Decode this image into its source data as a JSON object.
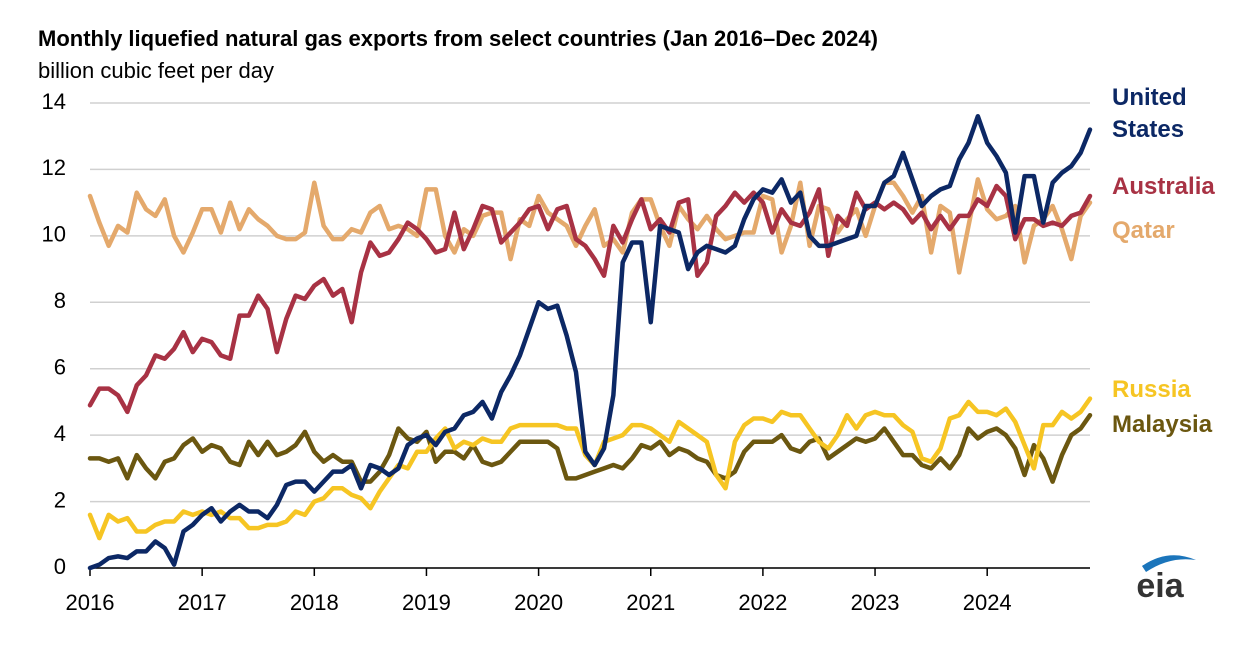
{
  "chart_data": {
    "type": "line",
    "title": "Monthly liquefied natural gas exports from select countries (Jan 2016–Dec 2024)",
    "subtitle": "billion cubic feet per day",
    "logo": "eia",
    "x": [
      "2016-01",
      "2016-02",
      "2016-03",
      "2016-04",
      "2016-05",
      "2016-06",
      "2016-07",
      "2016-08",
      "2016-09",
      "2016-10",
      "2016-11",
      "2016-12",
      "2017-01",
      "2017-02",
      "2017-03",
      "2017-04",
      "2017-05",
      "2017-06",
      "2017-07",
      "2017-08",
      "2017-09",
      "2017-10",
      "2017-11",
      "2017-12",
      "2018-01",
      "2018-02",
      "2018-03",
      "2018-04",
      "2018-05",
      "2018-06",
      "2018-07",
      "2018-08",
      "2018-09",
      "2018-10",
      "2018-11",
      "2018-12",
      "2019-01",
      "2019-02",
      "2019-03",
      "2019-04",
      "2019-05",
      "2019-06",
      "2019-07",
      "2019-08",
      "2019-09",
      "2019-10",
      "2019-11",
      "2019-12",
      "2020-01",
      "2020-02",
      "2020-03",
      "2020-04",
      "2020-05",
      "2020-06",
      "2020-07",
      "2020-08",
      "2020-09",
      "2020-10",
      "2020-11",
      "2020-12",
      "2021-01",
      "2021-02",
      "2021-03",
      "2021-04",
      "2021-05",
      "2021-06",
      "2021-07",
      "2021-08",
      "2021-09",
      "2021-10",
      "2021-11",
      "2021-12",
      "2022-01",
      "2022-02",
      "2022-03",
      "2022-04",
      "2022-05",
      "2022-06",
      "2022-07",
      "2022-08",
      "2022-09",
      "2022-10",
      "2022-11",
      "2022-12",
      "2023-01",
      "2023-02",
      "2023-03",
      "2023-04",
      "2023-05",
      "2023-06",
      "2023-07",
      "2023-08",
      "2023-09",
      "2023-10",
      "2023-11",
      "2023-12",
      "2024-01",
      "2024-02",
      "2024-03",
      "2024-04",
      "2024-05",
      "2024-06",
      "2024-07",
      "2024-08",
      "2024-09",
      "2024-10",
      "2024-11",
      "2024-12"
    ],
    "series": [
      {
        "name": "United States",
        "color": "#0c2865",
        "values": [
          0,
          0.1,
          0.3,
          0.35,
          0.3,
          0.5,
          0.5,
          0.8,
          0.6,
          0.1,
          1.1,
          1.3,
          1.6,
          1.8,
          1.4,
          1.7,
          1.9,
          1.7,
          1.7,
          1.5,
          1.9,
          2.5,
          2.6,
          2.6,
          2.3,
          2.6,
          2.9,
          2.9,
          3.1,
          2.4,
          3.1,
          3.0,
          2.8,
          3.0,
          3.7,
          3.9,
          4.0,
          3.7,
          4.1,
          4.2,
          4.6,
          4.7,
          5.0,
          4.5,
          5.3,
          5.8,
          6.4,
          7.2,
          8.0,
          7.8,
          7.9,
          7.0,
          5.9,
          3.5,
          3.1,
          3.6,
          5.2,
          9.2,
          9.8,
          9.8,
          7.4,
          10.3,
          10.2,
          10.1,
          9.0,
          9.5,
          9.7,
          9.6,
          9.5,
          9.7,
          10.5,
          11.1,
          11.4,
          11.3,
          11.7,
          11.0,
          11.3,
          10.0,
          9.7,
          9.7,
          9.8,
          9.9,
          10.0,
          10.9,
          10.9,
          11.6,
          11.8,
          12.5,
          11.7,
          10.9,
          11.2,
          11.4,
          11.5,
          12.3,
          12.8,
          13.6,
          12.8,
          12.4,
          11.9,
          10.1,
          11.8,
          11.8,
          10.4,
          11.6,
          11.9,
          12.1,
          12.5,
          13.2
        ]
      },
      {
        "name": "Australia",
        "color": "#a83244",
        "values": [
          4.9,
          5.4,
          5.4,
          5.2,
          4.7,
          5.5,
          5.8,
          6.4,
          6.3,
          6.6,
          7.1,
          6.5,
          6.9,
          6.8,
          6.4,
          6.3,
          7.6,
          7.6,
          8.2,
          7.8,
          6.5,
          7.5,
          8.2,
          8.1,
          8.5,
          8.7,
          8.2,
          8.4,
          7.4,
          8.9,
          9.8,
          9.4,
          9.5,
          9.9,
          10.4,
          10.2,
          9.9,
          9.5,
          9.6,
          10.7,
          9.6,
          10.2,
          10.9,
          10.8,
          9.8,
          10.1,
          10.4,
          10.8,
          10.9,
          10.2,
          10.8,
          10.9,
          9.9,
          9.7,
          9.3,
          8.8,
          10.3,
          9.8,
          10.5,
          11.1,
          10.2,
          10.5,
          10.1,
          11.0,
          11.1,
          8.8,
          9.2,
          10.6,
          10.9,
          11.3,
          11.0,
          11.3,
          11.0,
          10.1,
          10.8,
          10.4,
          10.3,
          10.7,
          11.4,
          9.4,
          10.6,
          10.3,
          11.3,
          10.8,
          11.0,
          10.8,
          11.0,
          10.8,
          10.4,
          10.7,
          10.2,
          10.6,
          10.2,
          10.6,
          10.6,
          11.1,
          10.9,
          11.5,
          11.2,
          9.9,
          10.5,
          10.5,
          10.3,
          10.4,
          10.3,
          10.6,
          10.7,
          11.2
        ]
      },
      {
        "name": "Qatar",
        "color": "#e4a96c",
        "values": [
          11.2,
          10.4,
          9.7,
          10.3,
          10.1,
          11.3,
          10.8,
          10.6,
          11.1,
          10.0,
          9.5,
          10.1,
          10.8,
          10.8,
          10.1,
          11.0,
          10.2,
          10.8,
          10.5,
          10.3,
          10.0,
          9.9,
          9.9,
          10.1,
          11.6,
          10.3,
          9.9,
          9.9,
          10.2,
          10.1,
          10.7,
          10.9,
          10.2,
          10.3,
          10.2,
          10.0,
          11.4,
          11.4,
          10.0,
          9.5,
          10.2,
          10.0,
          10.6,
          10.7,
          10.7,
          9.3,
          10.5,
          10.3,
          11.2,
          10.7,
          10.5,
          10.3,
          9.7,
          10.3,
          10.8,
          9.7,
          9.9,
          9.5,
          10.7,
          11.1,
          11.1,
          10.3,
          9.7,
          10.9,
          10.5,
          10.2,
          10.6,
          10.2,
          9.9,
          10.0,
          10.1,
          10.1,
          11.2,
          11.1,
          9.5,
          10.3,
          11.6,
          9.7,
          10.9,
          10.8,
          10.1,
          10.5,
          10.8,
          10.0,
          10.9,
          11.6,
          11.6,
          11.2,
          10.7,
          11.2,
          9.5,
          10.9,
          10.7,
          8.9,
          10.3,
          11.7,
          10.8,
          10.5,
          10.6,
          10.9,
          9.2,
          10.3,
          10.5,
          10.9,
          10.2,
          9.3,
          10.6,
          11.0
        ]
      },
      {
        "name": "Russia",
        "color": "#f6c523",
        "values": [
          1.6,
          0.9,
          1.6,
          1.4,
          1.5,
          1.1,
          1.1,
          1.3,
          1.4,
          1.4,
          1.7,
          1.6,
          1.7,
          1.6,
          1.7,
          1.5,
          1.5,
          1.2,
          1.2,
          1.3,
          1.3,
          1.4,
          1.7,
          1.6,
          2.0,
          2.1,
          2.4,
          2.4,
          2.2,
          2.1,
          1.8,
          2.3,
          2.7,
          3.1,
          3.0,
          3.5,
          3.5,
          3.9,
          4.2,
          3.6,
          3.8,
          3.7,
          3.9,
          3.8,
          3.8,
          4.2,
          4.3,
          4.3,
          4.3,
          4.3,
          4.3,
          4.2,
          4.2,
          3.4,
          3.1,
          3.8,
          3.9,
          4.0,
          4.3,
          4.3,
          4.2,
          4.0,
          3.8,
          4.4,
          4.2,
          4.0,
          3.8,
          2.8,
          2.4,
          3.8,
          4.3,
          4.5,
          4.5,
          4.4,
          4.7,
          4.6,
          4.6,
          4.2,
          3.8,
          3.6,
          4.0,
          4.6,
          4.2,
          4.6,
          4.7,
          4.6,
          4.6,
          4.3,
          4.1,
          3.3,
          3.2,
          3.6,
          4.5,
          4.6,
          5.0,
          4.7,
          4.7,
          4.6,
          4.8,
          4.4,
          3.7,
          3.0,
          4.3,
          4.3,
          4.7,
          4.5,
          4.7,
          5.1
        ]
      },
      {
        "name": "Malaysia",
        "color": "#6b5710",
        "values": [
          3.3,
          3.3,
          3.2,
          3.3,
          2.7,
          3.4,
          3.0,
          2.7,
          3.2,
          3.3,
          3.7,
          3.9,
          3.5,
          3.7,
          3.6,
          3.2,
          3.1,
          3.8,
          3.4,
          3.8,
          3.4,
          3.5,
          3.7,
          4.1,
          3.5,
          3.2,
          3.4,
          3.2,
          3.2,
          2.6,
          2.6,
          2.9,
          3.4,
          4.2,
          3.9,
          3.8,
          4.1,
          3.2,
          3.5,
          3.5,
          3.3,
          3.7,
          3.2,
          3.1,
          3.2,
          3.5,
          3.8,
          3.8,
          3.8,
          3.8,
          3.6,
          2.7,
          2.7,
          2.8,
          2.9,
          3.0,
          3.1,
          3.0,
          3.3,
          3.7,
          3.6,
          3.8,
          3.4,
          3.6,
          3.5,
          3.3,
          3.2,
          2.8,
          2.7,
          2.9,
          3.5,
          3.8,
          3.8,
          3.8,
          4.0,
          3.6,
          3.5,
          3.8,
          3.9,
          3.3,
          3.5,
          3.7,
          3.9,
          3.8,
          3.9,
          4.2,
          3.8,
          3.4,
          3.4,
          3.1,
          3.0,
          3.3,
          3.0,
          3.4,
          4.2,
          3.9,
          4.1,
          4.2,
          4.0,
          3.6,
          2.8,
          3.7,
          3.3,
          2.6,
          3.4,
          4.0,
          4.2,
          4.6
        ]
      }
    ],
    "xlim": [
      "2016-01",
      "2024-12"
    ],
    "xticks": [
      {
        "value": "2016-01",
        "label": "2016"
      },
      {
        "value": "2017-01",
        "label": "2017"
      },
      {
        "value": "2018-01",
        "label": "2018"
      },
      {
        "value": "2019-01",
        "label": "2019"
      },
      {
        "value": "2020-01",
        "label": "2020"
      },
      {
        "value": "2021-01",
        "label": "2021"
      },
      {
        "value": "2022-01",
        "label": "2022"
      },
      {
        "value": "2023-01",
        "label": "2023"
      },
      {
        "value": "2024-01",
        "label": "2024"
      }
    ],
    "ylim": [
      0,
      14
    ],
    "yticks": [
      0,
      2,
      4,
      6,
      8,
      10,
      12,
      14
    ],
    "grid": true
  }
}
